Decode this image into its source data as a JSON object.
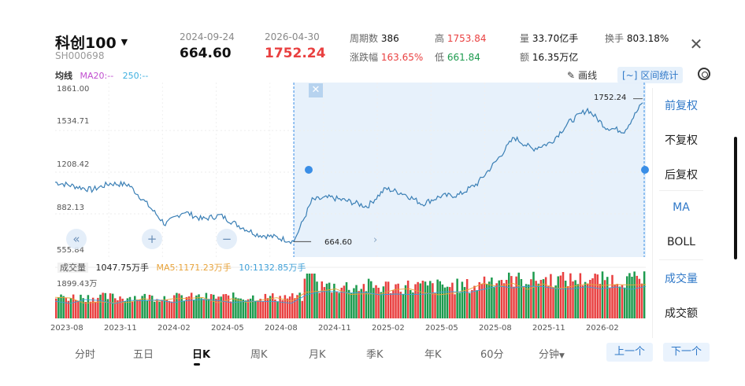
{
  "header": {
    "title": "科创100",
    "code": "SH000698",
    "start_date": "2024-09-24",
    "start_price": "664.60",
    "end_date": "2026-04-30",
    "end_price": "1752.24",
    "stats": {
      "periods_label": "周期数",
      "periods_value": "386",
      "change_label": "涨跌幅",
      "change_value": "163.65%",
      "high_label": "高",
      "high_value": "1753.84",
      "low_label": "低",
      "low_value": "661.84",
      "vol_label": "量",
      "vol_value": "33.70亿手",
      "amt_label": "额",
      "amt_value": "16.35万亿",
      "turn_label": "换手",
      "turn_value": "803.18%"
    },
    "close_icon": "close-icon"
  },
  "toolbar": {
    "ma_label": "均线",
    "ma20": "MA20:--",
    "ma250": "250:--",
    "draw_label": "画线",
    "range_stats_label": "区间统计"
  },
  "price_axis": [
    "1861.00",
    "1534.71",
    "1208.42",
    "882.13",
    "555.84"
  ],
  "selection": {
    "start_label": "664.60",
    "end_label": "1752.24"
  },
  "volume": {
    "label": "成交量",
    "value": "1047.75万手",
    "ma5": "MA5:1171.23万手",
    "ma10": "10:1132.85万手",
    "axis_max": "1899.43万"
  },
  "time_axis": [
    "2023-08",
    "2023-11",
    "2024-02",
    "2024-05",
    "2024-08",
    "2024-11",
    "2025-02",
    "2025-05",
    "2025-08",
    "2025-11",
    "2026-02"
  ],
  "right_panel": [
    "前复权",
    "不复权",
    "后复权",
    "MA",
    "BOLL",
    "成交量",
    "成交额"
  ],
  "tabs": [
    "分时",
    "五日",
    "日K",
    "周K",
    "月K",
    "季K",
    "年K",
    "60分",
    "分钟"
  ],
  "nav": {
    "prev": "上一个",
    "next": "下一个"
  },
  "colors": {
    "up": "#e94040",
    "down": "#1e9b4f",
    "line": "#3a7fb5",
    "accent": "#2f78c8"
  },
  "chart_data": {
    "type": "line",
    "ylim": [
      555.84,
      1861.0
    ],
    "selection_range": [
      "2024-09-24",
      "2026-04-30"
    ],
    "price_points": [
      [
        "2023-08",
        1130
      ],
      [
        "2023-09",
        1100
      ],
      [
        "2023-10",
        1070
      ],
      [
        "2023-11",
        1120
      ],
      [
        "2023-12",
        1110
      ],
      [
        "2024-01",
        960
      ],
      [
        "2024-02",
        800
      ],
      [
        "2024-03",
        900
      ],
      [
        "2024-04",
        840
      ],
      [
        "2024-05",
        870
      ],
      [
        "2024-06",
        790
      ],
      [
        "2024-07",
        720
      ],
      [
        "2024-08",
        700
      ],
      [
        "2024-09",
        664.6
      ],
      [
        "2024-10",
        990
      ],
      [
        "2024-11",
        1010
      ],
      [
        "2024-12",
        980
      ],
      [
        "2025-01",
        940
      ],
      [
        "2025-02",
        1080
      ],
      [
        "2025-03",
        1040
      ],
      [
        "2025-04",
        960
      ],
      [
        "2025-05",
        1020
      ],
      [
        "2025-06",
        1030
      ],
      [
        "2025-07",
        1120
      ],
      [
        "2025-08",
        1290
      ],
      [
        "2025-09",
        1480
      ],
      [
        "2025-10",
        1390
      ],
      [
        "2025-11",
        1440
      ],
      [
        "2025-12",
        1600
      ],
      [
        "2026-01",
        1700
      ],
      [
        "2026-02",
        1560
      ],
      [
        "2026-03",
        1530
      ],
      [
        "2026-04",
        1752.24
      ]
    ]
  }
}
